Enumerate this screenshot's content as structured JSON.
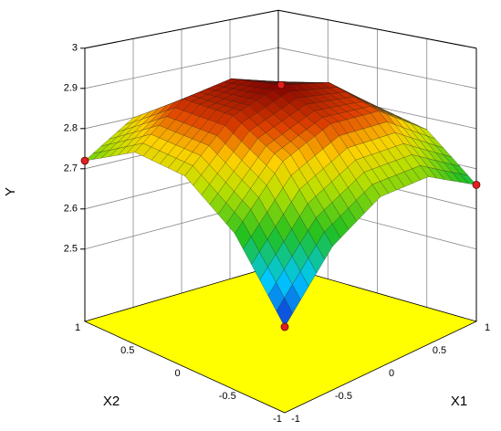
{
  "chart_data": {
    "type": "surface",
    "x1_label": "X1",
    "x2_label": "X2",
    "y_label": "Y",
    "x1": [
      -1,
      -0.5,
      0,
      0.5,
      1
    ],
    "x2": [
      -1,
      -0.5,
      0,
      0.5,
      1
    ],
    "z": [
      [
        2.52,
        2.69,
        2.78,
        2.79,
        2.72
      ],
      [
        2.66,
        2.82,
        2.89,
        2.89,
        2.8
      ],
      [
        2.73,
        2.87,
        2.93,
        2.91,
        2.81
      ],
      [
        2.73,
        2.86,
        2.9,
        2.87,
        2.75
      ],
      [
        2.66,
        2.77,
        2.8,
        2.75,
        2.62
      ]
    ],
    "points": {
      "x1": [
        0,
        -1,
        1,
        -1
      ],
      "x2": [
        0,
        1,
        -1,
        -1
      ],
      "y": [
        2.93,
        2.72,
        2.66,
        2.52
      ],
      "color": "#e02020"
    },
    "x1lim": [
      -1,
      1
    ],
    "x2lim": [
      -1,
      1
    ],
    "ylim": [
      2.32,
      3
    ],
    "x1ticks": [
      -1,
      -0.5,
      0,
      0.5,
      1
    ],
    "x2ticks": [
      -1,
      -0.5,
      0,
      0.5,
      1
    ],
    "yticks": [
      2.5,
      2.6,
      2.7,
      2.8,
      2.9,
      3
    ],
    "floor_color": "#ffff00",
    "grid": true
  }
}
